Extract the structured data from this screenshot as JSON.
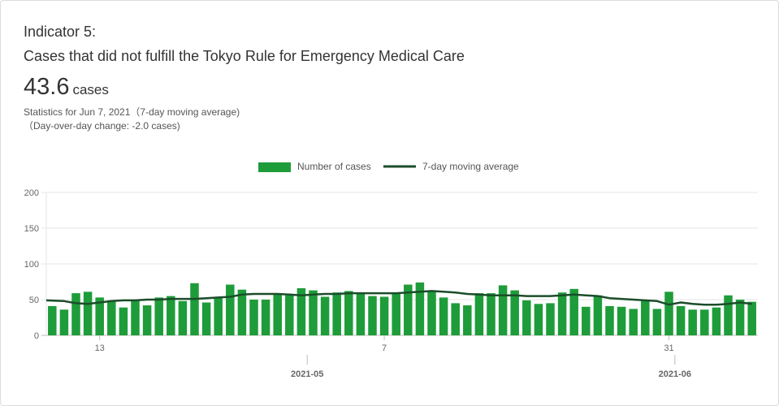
{
  "header": {
    "indicator": "Indicator 5:",
    "title": "Cases that did not fulfill the Tokyo Rule for Emergency Medical Care",
    "value": "43.6",
    "unit": "cases",
    "stat_line1": "Statistics for Jun 7, 2021（7-day moving average)",
    "stat_line2": "（Day-over-day change: -2.0 cases)"
  },
  "colors": {
    "bar": "#1e9c3a",
    "line": "#1b4d2a",
    "grid": "#e6e6e6"
  },
  "chart_data": {
    "type": "bar",
    "legend": [
      "Number of cases",
      "7-day moving average"
    ],
    "legend_position": "top-center",
    "ylim": [
      0,
      200
    ],
    "y_ticks": [
      0,
      50,
      100,
      150,
      200
    ],
    "grid": true,
    "x_ticks": [
      {
        "date": "2021-04-13",
        "label": "13"
      },
      {
        "date": "2021-05-07",
        "label": "7"
      },
      {
        "date": "2021-05-31",
        "label": "31"
      }
    ],
    "month_ticks": [
      {
        "date": "2021-05-01",
        "label": "2021-05"
      },
      {
        "date": "2021-06-01",
        "label": "2021-06"
      }
    ],
    "start_date": "2021-04-09",
    "series": [
      {
        "name": "Number of cases",
        "type": "bar",
        "values": [
          41,
          36,
          59,
          61,
          53,
          49,
          39,
          48,
          42,
          53,
          55,
          48,
          73,
          46,
          52,
          71,
          64,
          50,
          50,
          57,
          56,
          66,
          63,
          54,
          60,
          62,
          60,
          55,
          54,
          58,
          71,
          74,
          62,
          53,
          45,
          42,
          59,
          59,
          70,
          63,
          49,
          44,
          45,
          60,
          65,
          40,
          56,
          41,
          40,
          37,
          48,
          37,
          61,
          41,
          36,
          36,
          39,
          56,
          50,
          47
        ]
      },
      {
        "name": "7-day moving average",
        "type": "line",
        "values": [
          49,
          48,
          45,
          44,
          46,
          48,
          49,
          49,
          50,
          50,
          51,
          51,
          51,
          52,
          53,
          54,
          57,
          58,
          58,
          58,
          57,
          56,
          57,
          58,
          58,
          59,
          59,
          59,
          59,
          59,
          60,
          61,
          62,
          61,
          60,
          58,
          57,
          56,
          56,
          56,
          55,
          55,
          55,
          56,
          57,
          56,
          55,
          52,
          51,
          50,
          49,
          48,
          43,
          46,
          44,
          43,
          43,
          44,
          46,
          44
        ]
      }
    ]
  }
}
